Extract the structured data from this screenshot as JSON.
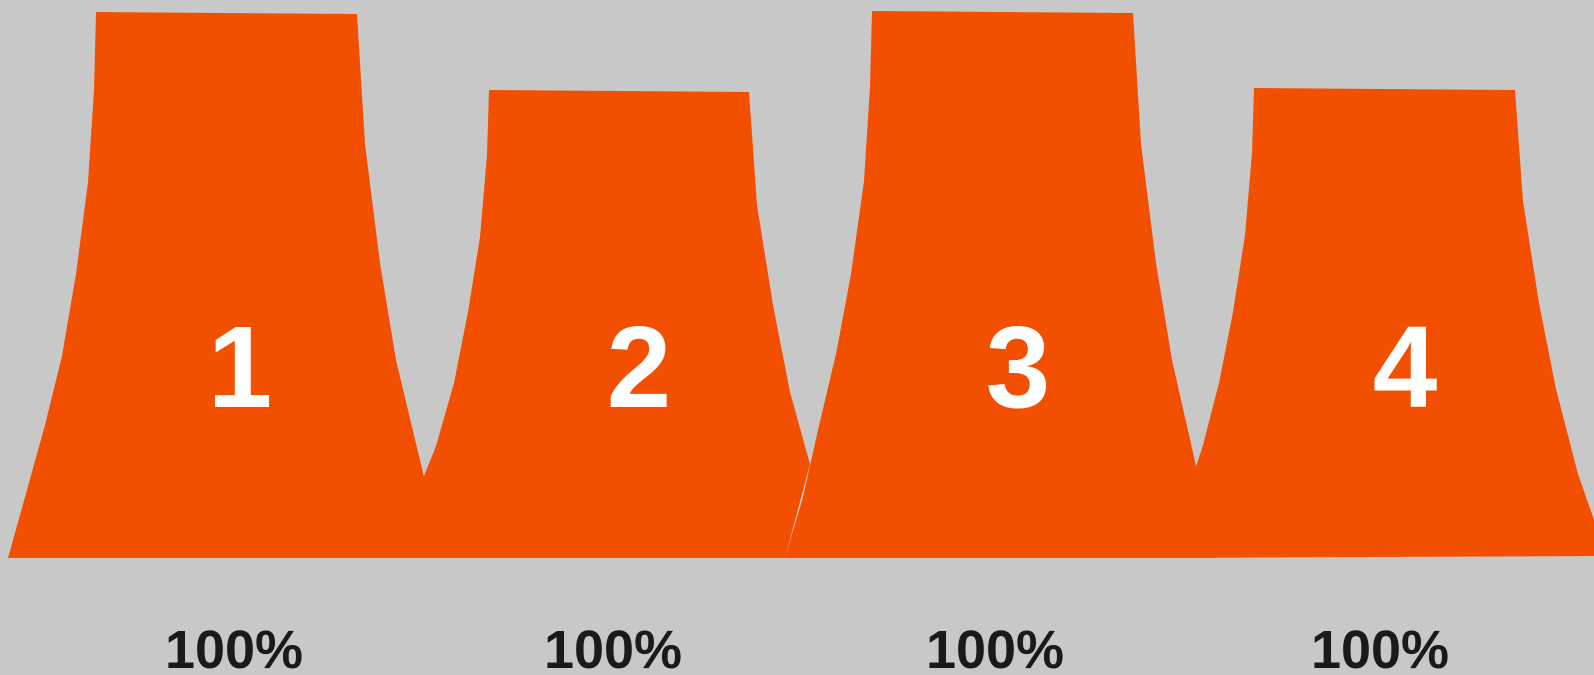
{
  "colors": {
    "background": "#c8c8c8",
    "tower_fill": "#f25000",
    "number_text": "#ffffff",
    "percent_text": "#1a1a1a"
  },
  "towers": [
    {
      "number": "1",
      "percent": "100%",
      "icon": "cooling-tower-icon"
    },
    {
      "number": "2",
      "percent": "100%",
      "icon": "cooling-tower-icon"
    },
    {
      "number": "3",
      "percent": "100%",
      "icon": "cooling-tower-icon"
    },
    {
      "number": "4",
      "percent": "100%",
      "icon": "cooling-tower-icon"
    }
  ]
}
